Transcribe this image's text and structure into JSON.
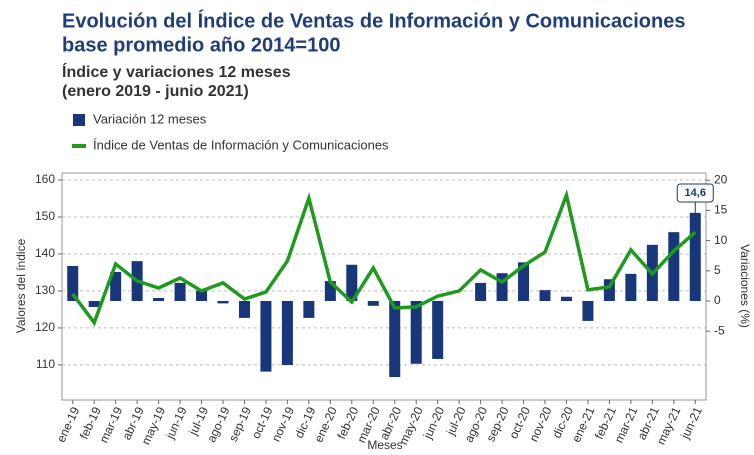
{
  "chart_data": {
    "type": "bar-line",
    "title": [
      "Evolución del Índice de Ventas de Información y Comunicaciones",
      "base promedio año 2014=100"
    ],
    "subtitle": [
      "Índice y variaciones 12 meses",
      "(enero 2019 - junio 2021)"
    ],
    "x_label": "Meses",
    "y_label": "Valores del índice",
    "y2_label": "Variaciones (%)",
    "categories": [
      "ene-19",
      "feb-19",
      "mar-19",
      "abr-19",
      "may-19",
      "jun-19",
      "jul-19",
      "ago-19",
      "sep-19",
      "oct-19",
      "nov-19",
      "dic-19",
      "ene-20",
      "feb-20",
      "mar-20",
      "abr-20",
      "may-20",
      "jun-20",
      "jul-20",
      "ago-20",
      "sep-20",
      "oct-20",
      "nov-20",
      "dic-20",
      "ene-21",
      "feb-21",
      "mar-21",
      "abr-21",
      "may-21",
      "jun-21"
    ],
    "series": [
      {
        "name": "Variación 12 meses",
        "type": "bar",
        "axis": "y2",
        "color": "#17377a",
        "values": [
          5.8,
          -1.0,
          4.8,
          6.6,
          0.5,
          3.0,
          1.7,
          -0.4,
          -2.8,
          -11.7,
          -10.6,
          -2.8,
          3.3,
          6.0,
          -0.8,
          -12.6,
          -10.4,
          -9.6,
          0.0,
          3.0,
          4.6,
          6.4,
          1.8,
          0.7,
          -3.3,
          3.6,
          4.5,
          9.3,
          11.4,
          14.6
        ],
        "value_labels": [
          null,
          null,
          null,
          null,
          null,
          null,
          null,
          null,
          null,
          null,
          null,
          null,
          null,
          null,
          null,
          null,
          null,
          null,
          null,
          null,
          null,
          null,
          null,
          null,
          null,
          null,
          null,
          null,
          null,
          "14,6"
        ]
      },
      {
        "name": "Índice de Ventas de Información y Comunicaciones",
        "type": "line",
        "axis": "y",
        "color": "#1f9a1f",
        "values": [
          129.2,
          121.4,
          137.3,
          132.7,
          130.8,
          133.5,
          130.0,
          132.2,
          127.8,
          129.7,
          138.1,
          155.1,
          132.4,
          127.0,
          136.2,
          125.4,
          125.7,
          128.6,
          130.0,
          135.7,
          132.4,
          136.8,
          140.5,
          155.9,
          130.3,
          131.1,
          141.1,
          134.6,
          140.8,
          145.9
        ]
      }
    ],
    "ylim": [
      100.5,
      161.9
    ],
    "yticks": [
      110,
      120,
      130,
      140,
      150,
      160
    ],
    "y2lim": [
      -16.4,
      21.2
    ],
    "y2ticks": [
      -5,
      0,
      5,
      10,
      15,
      20
    ],
    "grid": true
  }
}
